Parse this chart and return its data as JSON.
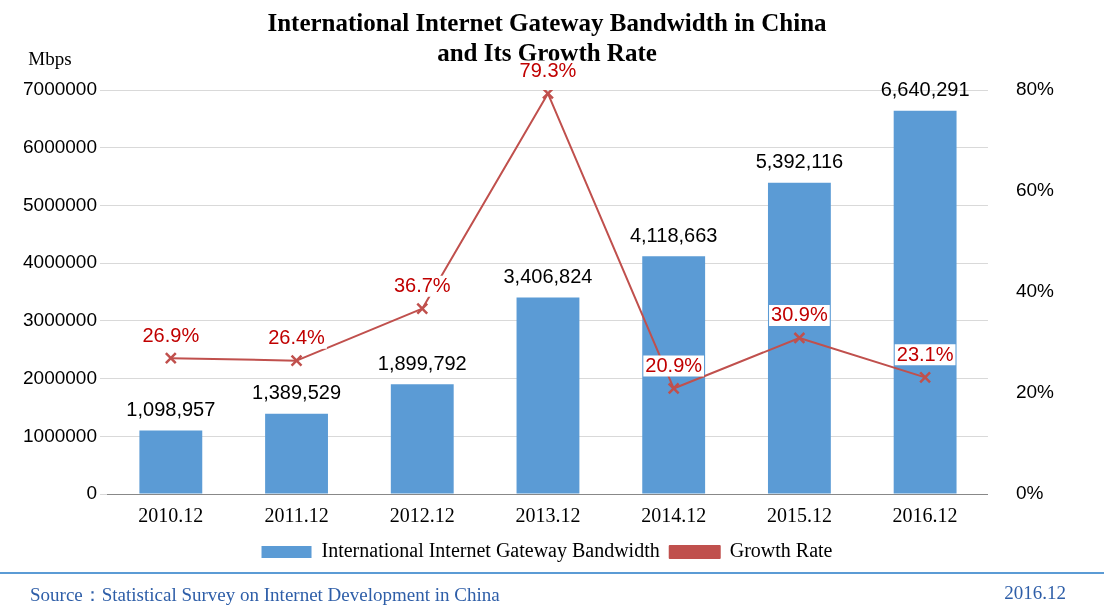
{
  "chart_data": {
    "type": "bar",
    "title": "International Internet Gateway Bandwidth in China and Its Growth Rate",
    "ylabel": "Mbps",
    "categories": [
      "2010.12",
      "2011.12",
      "2012.12",
      "2013.12",
      "2014.12",
      "2015.12",
      "2016.12"
    ],
    "series": [
      {
        "name": "International Internet Gateway Bandwidth",
        "color": "#5b9bd5",
        "values": [
          1098957,
          1389529,
          1899792,
          3406824,
          4118663,
          5392116,
          6640291
        ],
        "value_labels": [
          "1,098,957",
          "1,389,529",
          "1,899,792",
          "3,406,824",
          "4,118,663",
          "5,392,116",
          "6,640,291"
        ]
      },
      {
        "name": "Growth Rate",
        "type": "line",
        "axis": "y2",
        "color": "#c0504d",
        "marker": "cross",
        "values": [
          26.9,
          26.4,
          36.7,
          79.3,
          20.9,
          30.9,
          23.1
        ],
        "value_labels": [
          "26.9%",
          "26.4%",
          "36.7%",
          "79.3%",
          "20.9%",
          "30.9%",
          "23.1%"
        ]
      }
    ],
    "ylim": [
      0,
      7000000
    ],
    "yticks": [
      0,
      1000000,
      2000000,
      3000000,
      4000000,
      5000000,
      6000000,
      7000000
    ],
    "y2lim": [
      0,
      80
    ],
    "y2ticks": [
      {
        "value": 0,
        "label": "0%"
      },
      {
        "value": 20,
        "label": "20%"
      },
      {
        "value": 40,
        "label": "40%"
      },
      {
        "value": 60,
        "label": "60%"
      },
      {
        "value": 80,
        "label": "80%"
      }
    ],
    "grid": "y",
    "legend": "bottom",
    "annotations": [
      "Source：Statistical Survey on Internet Development in China",
      "2016.12"
    ]
  }
}
